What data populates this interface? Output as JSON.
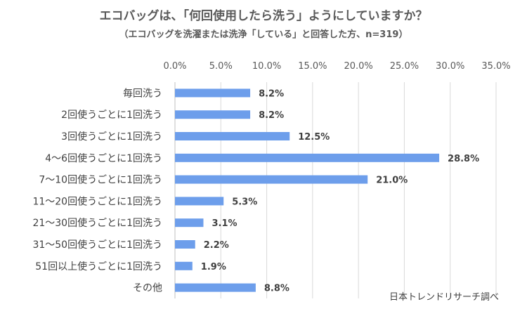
{
  "chart_data": {
    "type": "bar",
    "orientation": "horizontal",
    "title": "エコバッグは、「何回使用したら洗う」ようにしていますか？",
    "subtitle": "（エコバッグを洗濯または洗浄「している」と回答した方、n=319）",
    "categories": [
      "毎回洗う",
      "2回使うごとに1回洗う",
      "3回使うごとに1回洗う",
      "4～6回使うごとに1回洗う",
      "7～10回使うごとに1回洗う",
      "11～20回使うごとに1回洗う",
      "21～30回使うごとに1回洗う",
      "31～50回使うごとに1回洗う",
      "51回以上使うごとに1回洗う",
      "その他"
    ],
    "values": [
      8.2,
      8.2,
      12.5,
      28.8,
      21.0,
      5.3,
      3.1,
      2.2,
      1.9,
      8.8
    ],
    "value_labels": [
      "8.2%",
      "8.2%",
      "12.5%",
      "28.8%",
      "21.0%",
      "5.3%",
      "3.1%",
      "2.2%",
      "1.9%",
      "8.8%"
    ],
    "xlim": [
      0,
      35
    ],
    "x_ticks": [
      "0.0%",
      "5.0%",
      "10.0%",
      "15.0%",
      "20.0%",
      "25.0%",
      "30.0%",
      "35.0%"
    ],
    "x_axis_position": "top",
    "grid": true,
    "legend": "none",
    "bar_color": "#6d9eeb",
    "source": "日本トレンドリサーチ調べ"
  }
}
